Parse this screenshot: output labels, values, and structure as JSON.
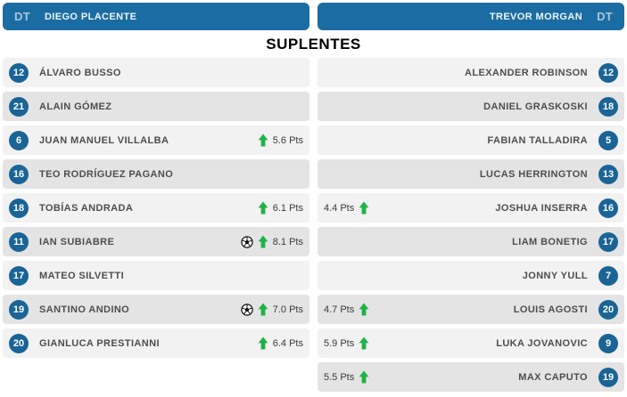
{
  "title": "SUPLENTES",
  "colors": {
    "header_blue": "#1b6ca3",
    "badge_blue": "#1a6496",
    "row_light": "#f2f2f2",
    "row_dark": "#e4e4e4",
    "arrow_green": "#1db345",
    "name_gray": "#4e4e4e"
  },
  "icons": {
    "up_arrow_icon": "up-arrow",
    "goal_icon": "soccer-ball"
  },
  "pts_suffix": "Pts",
  "left_team": {
    "coach_label": "DT",
    "coach_name": "DIEGO PLACENTE",
    "players": [
      {
        "number": "12",
        "name": "ÁLVARO BUSSO",
        "pts": "",
        "goal": false
      },
      {
        "number": "21",
        "name": "ALAIN GÓMEZ",
        "pts": "",
        "goal": false
      },
      {
        "number": "6",
        "name": "JUAN MANUEL VILLALBA",
        "pts": "5.6 Pts",
        "goal": false
      },
      {
        "number": "16",
        "name": "TEO RODRÍGUEZ PAGANO",
        "pts": "",
        "goal": false
      },
      {
        "number": "18",
        "name": "TOBÍAS ANDRADA",
        "pts": "6.1 Pts",
        "goal": false
      },
      {
        "number": "11",
        "name": "IAN SUBIABRE",
        "pts": "8.1 Pts",
        "goal": true
      },
      {
        "number": "17",
        "name": "MATEO SILVETTI",
        "pts": "",
        "goal": false
      },
      {
        "number": "19",
        "name": "SANTINO ANDINO",
        "pts": "7.0 Pts",
        "goal": true
      },
      {
        "number": "20",
        "name": "GIANLUCA PRESTIANNI",
        "pts": "6.4 Pts",
        "goal": false
      }
    ]
  },
  "right_team": {
    "coach_label": "DT",
    "coach_name": "TREVOR MORGAN",
    "players": [
      {
        "number": "12",
        "name": "ALEXANDER ROBINSON",
        "pts": "",
        "goal": false
      },
      {
        "number": "18",
        "name": "DANIEL GRASKOSKI",
        "pts": "",
        "goal": false
      },
      {
        "number": "5",
        "name": "FABIAN TALLADIRA",
        "pts": "",
        "goal": false
      },
      {
        "number": "13",
        "name": "LUCAS HERRINGTON",
        "pts": "",
        "goal": false
      },
      {
        "number": "16",
        "name": "JOSHUA INSERRA",
        "pts": "4.4 Pts",
        "goal": false
      },
      {
        "number": "17",
        "name": "LIAM BONETIG",
        "pts": "",
        "goal": false
      },
      {
        "number": "7",
        "name": "JONNY YULL",
        "pts": "",
        "goal": false
      },
      {
        "number": "20",
        "name": "LOUIS AGOSTI",
        "pts": "4.7 Pts",
        "goal": false
      },
      {
        "number": "9",
        "name": "LUKA JOVANOVIC",
        "pts": "5.9 Pts",
        "goal": false
      },
      {
        "number": "19",
        "name": "MAX CAPUTO",
        "pts": "5.5 Pts",
        "goal": false
      }
    ]
  }
}
